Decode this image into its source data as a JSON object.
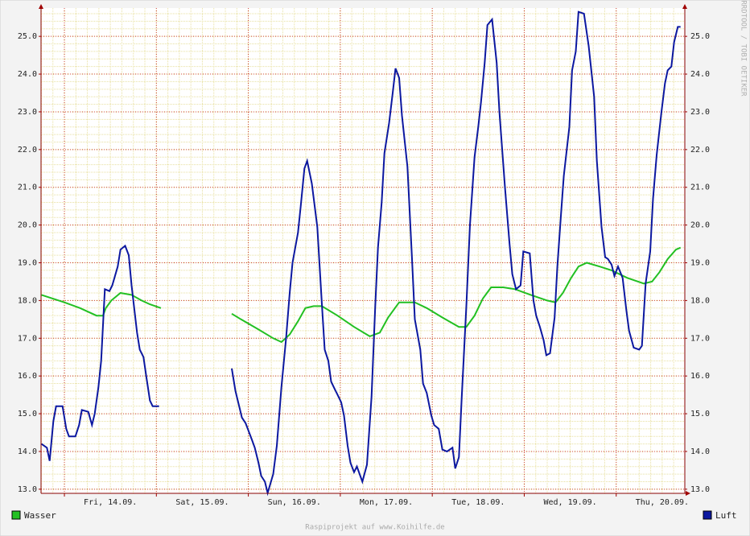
{
  "chart_data": {
    "type": "line",
    "credit": "RRDTOOL / TOBI OETIKER",
    "footer": "Raspiprojekt auf www.Koihilfe.de",
    "xlim": [
      13.746,
      20.746
    ],
    "ylim": [
      12.89,
      25.75
    ],
    "xticks": [
      {
        "value": 14.5,
        "label": "Fri, 14.09."
      },
      {
        "value": 15.5,
        "label": "Sat, 15.09."
      },
      {
        "value": 16.5,
        "label": "Sun, 16.09."
      },
      {
        "value": 17.5,
        "label": "Mon, 17.09."
      },
      {
        "value": 18.5,
        "label": "Tue, 18.09."
      },
      {
        "value": 19.5,
        "label": "Wed, 19.09."
      },
      {
        "value": 20.5,
        "label": "Thu, 20.09."
      }
    ],
    "xgrid": [
      14,
      15,
      16,
      17,
      18,
      19,
      20
    ],
    "xminor_step": 0.125,
    "yminor_step": 0.2,
    "yticks": [
      {
        "value": 13,
        "label": "13.0"
      },
      {
        "value": 14,
        "label": "14.0"
      },
      {
        "value": 15,
        "label": "15.0"
      },
      {
        "value": 16,
        "label": "16.0"
      },
      {
        "value": 17,
        "label": "17.0"
      },
      {
        "value": 18,
        "label": "18.0"
      },
      {
        "value": 19,
        "label": "19.0"
      },
      {
        "value": 20,
        "label": "20.0"
      },
      {
        "value": 21,
        "label": "21.0"
      },
      {
        "value": 22,
        "label": "22.0"
      },
      {
        "value": 23,
        "label": "23.0"
      },
      {
        "value": 24,
        "label": "24.0"
      },
      {
        "value": 25,
        "label": "25.0"
      }
    ],
    "grid": true,
    "series": [
      {
        "name": "Wasser",
        "color": "#22c022",
        "x": [
          13.75,
          14.0,
          14.17,
          14.35,
          14.42,
          14.45,
          14.51,
          14.61,
          14.73,
          14.84,
          14.93,
          15.05,
          15.4,
          15.82,
          15.92,
          16.1,
          16.27,
          16.36,
          16.45,
          16.54,
          16.62,
          16.71,
          16.8,
          16.97,
          17.15,
          17.32,
          17.43,
          17.52,
          17.64,
          17.81,
          17.94,
          18.11,
          18.29,
          18.37,
          18.46,
          18.55,
          18.64,
          18.77,
          18.9,
          19.07,
          19.25,
          19.34,
          19.42,
          19.51,
          19.59,
          19.68,
          19.82,
          19.95,
          20.12,
          20.3,
          20.39,
          20.47,
          20.56,
          20.65,
          20.7
        ],
        "values": [
          18.15,
          17.95,
          17.8,
          17.6,
          17.6,
          17.8,
          18.0,
          18.2,
          18.15,
          18.0,
          17.9,
          17.8,
          null,
          17.65,
          17.5,
          17.25,
          17.0,
          16.9,
          17.1,
          17.45,
          17.8,
          17.85,
          17.85,
          17.6,
          17.3,
          17.05,
          17.15,
          17.55,
          17.95,
          17.95,
          17.8,
          17.55,
          17.3,
          17.3,
          17.6,
          18.05,
          18.35,
          18.35,
          18.3,
          18.15,
          18.0,
          17.95,
          18.2,
          18.6,
          18.9,
          19.0,
          18.9,
          18.8,
          18.6,
          18.45,
          18.5,
          18.75,
          19.1,
          19.35,
          19.4
        ]
      },
      {
        "name": "Luft",
        "color": "#0c18a0",
        "x": [
          13.75,
          13.81,
          13.84,
          13.88,
          13.91,
          13.98,
          14.02,
          14.05,
          14.12,
          14.16,
          14.19,
          14.26,
          14.3,
          14.33,
          14.37,
          14.4,
          14.44,
          14.49,
          14.52,
          14.58,
          14.61,
          14.66,
          14.7,
          14.73,
          14.79,
          14.82,
          14.86,
          14.89,
          14.93,
          14.96,
          15.03,
          15.4,
          15.82,
          15.86,
          15.9,
          15.93,
          15.97,
          16.04,
          16.07,
          16.11,
          16.14,
          16.18,
          16.21,
          16.27,
          16.31,
          16.36,
          16.41,
          16.45,
          16.48,
          16.54,
          16.57,
          16.61,
          16.64,
          16.69,
          16.75,
          16.8,
          16.83,
          16.87,
          16.9,
          16.94,
          16.97,
          17.01,
          17.04,
          17.08,
          17.11,
          17.15,
          17.18,
          17.24,
          17.29,
          17.34,
          17.38,
          17.41,
          17.45,
          17.48,
          17.53,
          17.57,
          17.6,
          17.64,
          17.67,
          17.73,
          17.78,
          17.81,
          17.87,
          17.9,
          17.94,
          17.99,
          18.02,
          18.07,
          18.11,
          18.16,
          18.22,
          18.25,
          18.29,
          18.32,
          18.37,
          18.41,
          18.46,
          18.5,
          18.53,
          18.57,
          18.6,
          18.65,
          18.7,
          18.73,
          18.79,
          18.84,
          18.87,
          18.91,
          18.96,
          18.99,
          19.06,
          19.1,
          19.13,
          19.17,
          19.21,
          19.24,
          19.28,
          19.33,
          19.36,
          19.4,
          19.43,
          19.49,
          19.52,
          19.56,
          19.59,
          19.65,
          19.7,
          19.76,
          19.79,
          19.84,
          19.88,
          19.91,
          19.95,
          19.98,
          20.02,
          20.07,
          20.11,
          20.14,
          20.19,
          20.25,
          20.28,
          20.32,
          20.37,
          20.4,
          20.44,
          20.49,
          20.53,
          20.56,
          20.6,
          20.63,
          20.67,
          20.7
        ],
        "values": [
          14.2,
          14.1,
          13.75,
          14.8,
          15.2,
          15.2,
          14.6,
          14.4,
          14.4,
          14.7,
          15.1,
          15.05,
          14.7,
          15.0,
          15.7,
          16.4,
          18.3,
          18.25,
          18.4,
          18.9,
          19.35,
          19.45,
          19.2,
          18.4,
          17.15,
          16.7,
          16.5,
          16.0,
          15.35,
          15.2,
          15.2,
          null,
          16.2,
          15.6,
          15.2,
          14.9,
          14.75,
          14.3,
          14.1,
          13.7,
          13.35,
          13.2,
          12.9,
          13.4,
          14.15,
          15.7,
          17.0,
          18.2,
          19.0,
          19.8,
          20.5,
          21.5,
          21.7,
          21.1,
          19.95,
          17.9,
          16.7,
          16.4,
          15.85,
          15.65,
          15.5,
          15.3,
          14.95,
          14.15,
          13.7,
          13.45,
          13.6,
          13.2,
          13.65,
          15.45,
          17.85,
          19.4,
          20.6,
          21.9,
          22.7,
          23.5,
          24.15,
          23.9,
          22.9,
          21.55,
          19.1,
          17.5,
          16.7,
          15.8,
          15.55,
          14.95,
          14.7,
          14.6,
          14.05,
          14.0,
          14.1,
          13.55,
          13.85,
          15.4,
          17.85,
          20.0,
          21.8,
          22.6,
          23.25,
          24.3,
          25.3,
          25.45,
          24.3,
          23.0,
          21.0,
          19.5,
          18.7,
          18.3,
          18.4,
          19.3,
          19.25,
          18.0,
          17.6,
          17.3,
          16.95,
          16.55,
          16.6,
          17.55,
          18.9,
          20.3,
          21.3,
          22.6,
          24.1,
          24.6,
          25.65,
          25.6,
          24.75,
          23.4,
          21.7,
          19.95,
          19.15,
          19.1,
          18.95,
          18.65,
          18.9,
          18.6,
          17.75,
          17.2,
          16.75,
          16.7,
          16.8,
          18.45,
          19.3,
          20.7,
          21.85,
          22.95,
          23.75,
          24.1,
          24.2,
          24.85,
          25.25,
          25.25
        ]
      }
    ]
  }
}
